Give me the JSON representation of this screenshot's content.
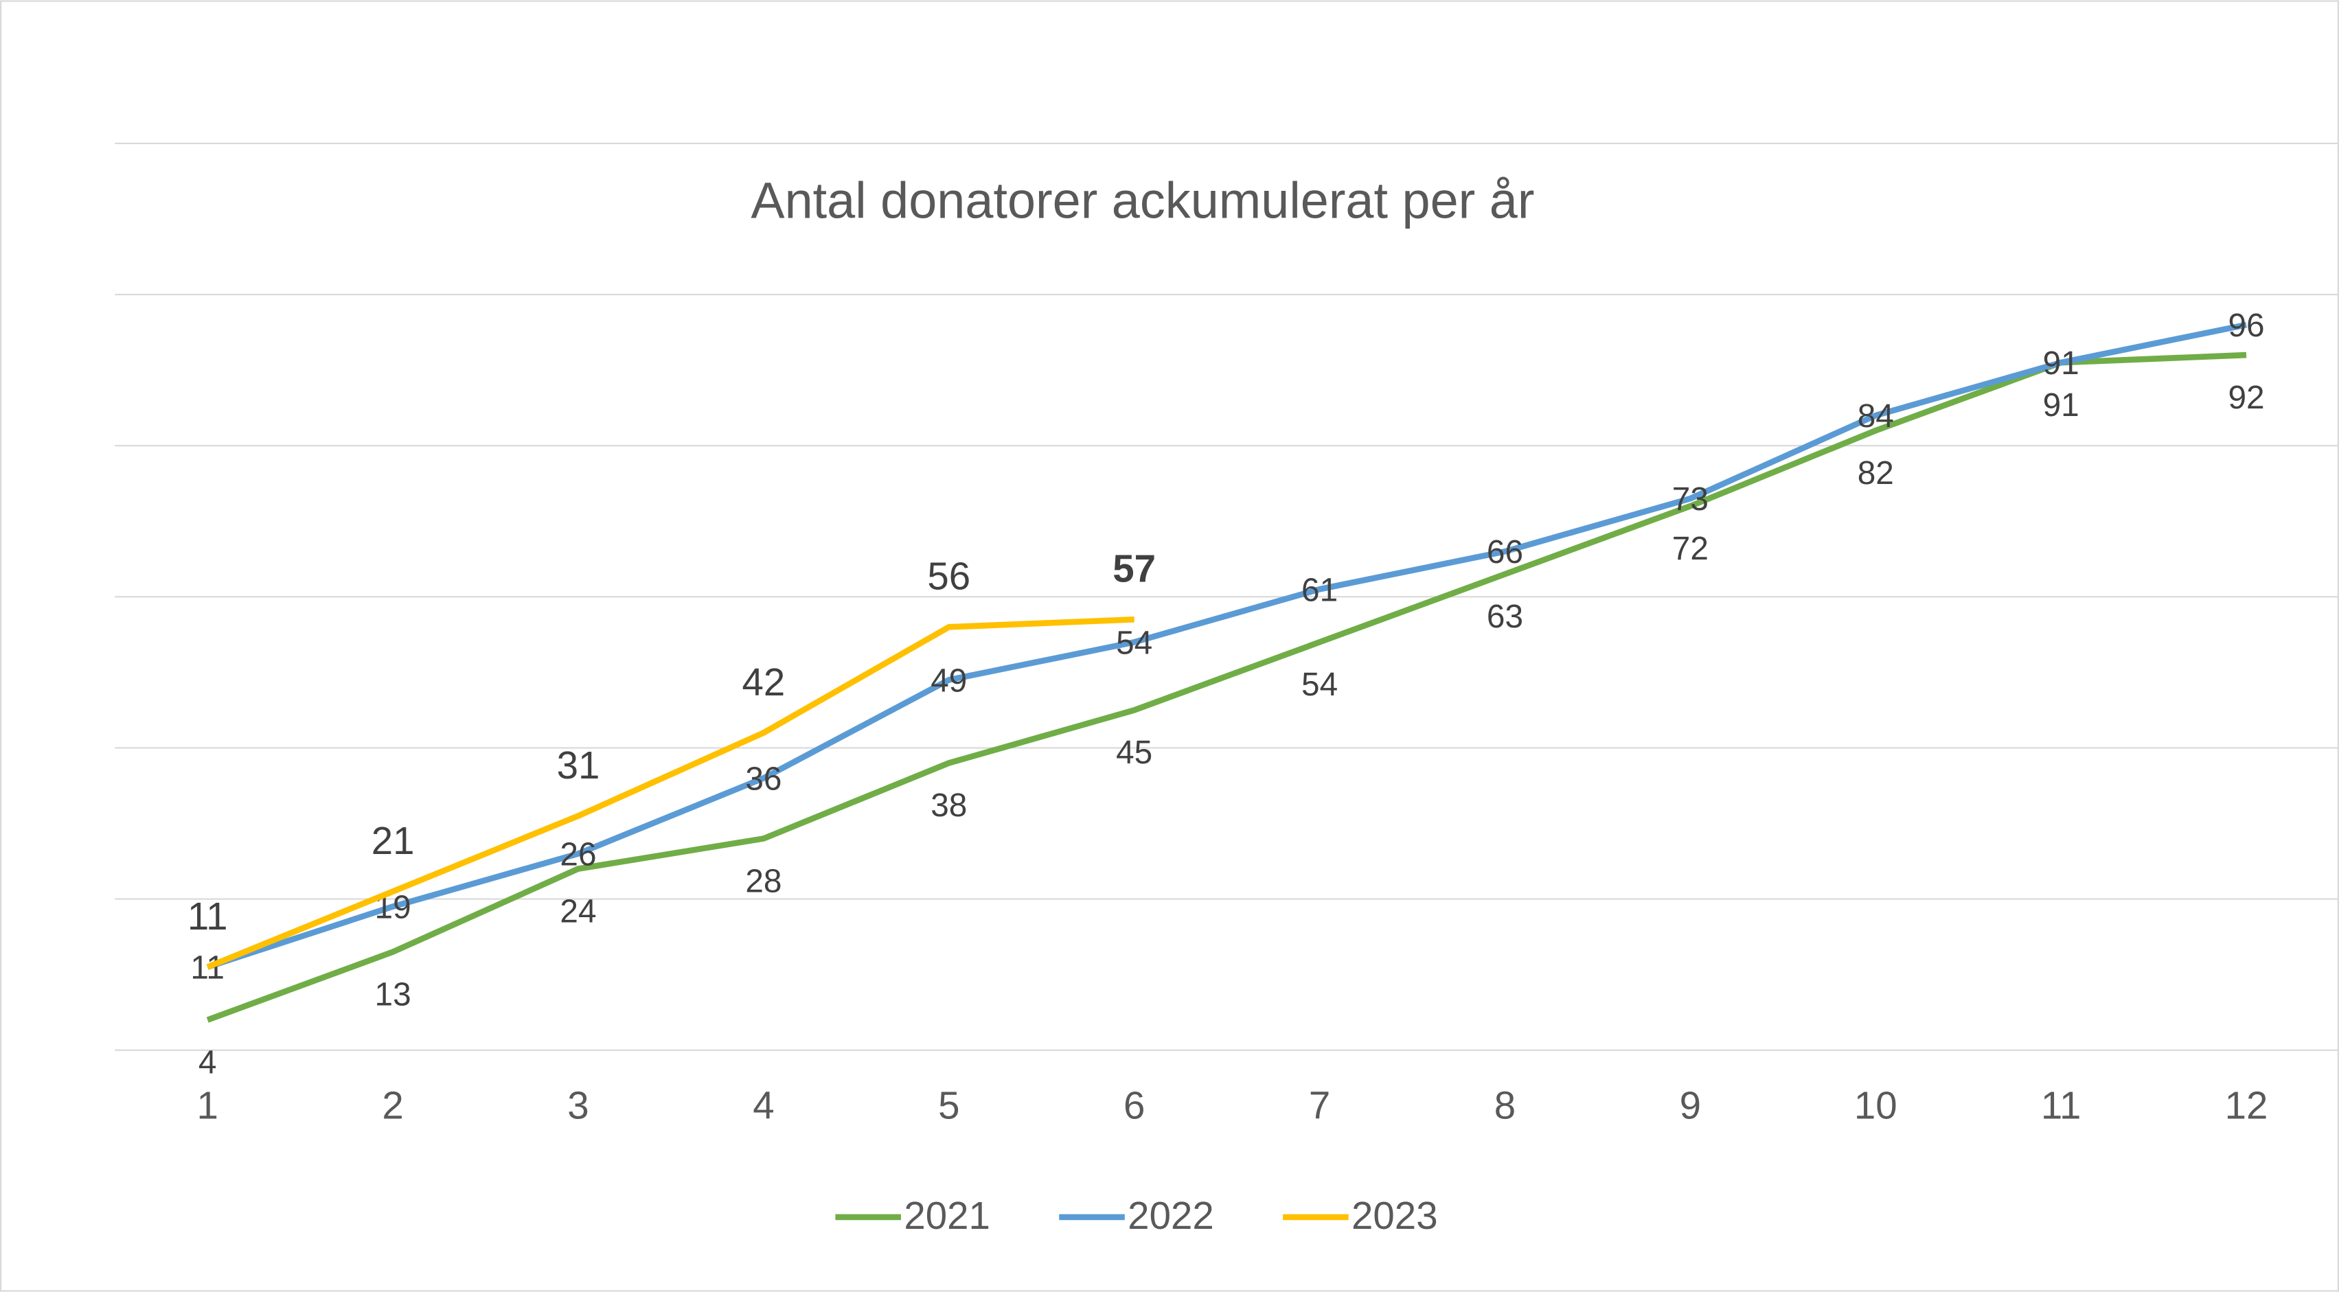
{
  "chart_data": {
    "type": "line",
    "title": "Antal donatorer ackumulerat per år",
    "categories": [
      "1",
      "2",
      "3",
      "4",
      "5",
      "6",
      "7",
      "8",
      "9",
      "10",
      "11",
      "12"
    ],
    "series": [
      {
        "name": "2021",
        "color": "#70ad47",
        "label_position": "below",
        "values": [
          4,
          13,
          24,
          28,
          38,
          45,
          54,
          63,
          72,
          82,
          91,
          92
        ]
      },
      {
        "name": "2022",
        "color": "#5b9bd5",
        "label_position": "center",
        "values": [
          11,
          19,
          26,
          36,
          49,
          54,
          61,
          66,
          73,
          84,
          91,
          96
        ]
      },
      {
        "name": "2023",
        "color": "#ffc000",
        "label_position": "above",
        "bold_label_indices": [
          5
        ],
        "values": [
          11,
          21,
          31,
          42,
          56,
          57,
          null,
          null,
          null,
          null,
          null,
          null
        ]
      }
    ],
    "ylim": [
      0,
      120
    ],
    "yticks": [
      0,
      20,
      40,
      60,
      80,
      100,
      120
    ],
    "show_ytick_labels": false,
    "grid": true,
    "legend": "bottom"
  }
}
